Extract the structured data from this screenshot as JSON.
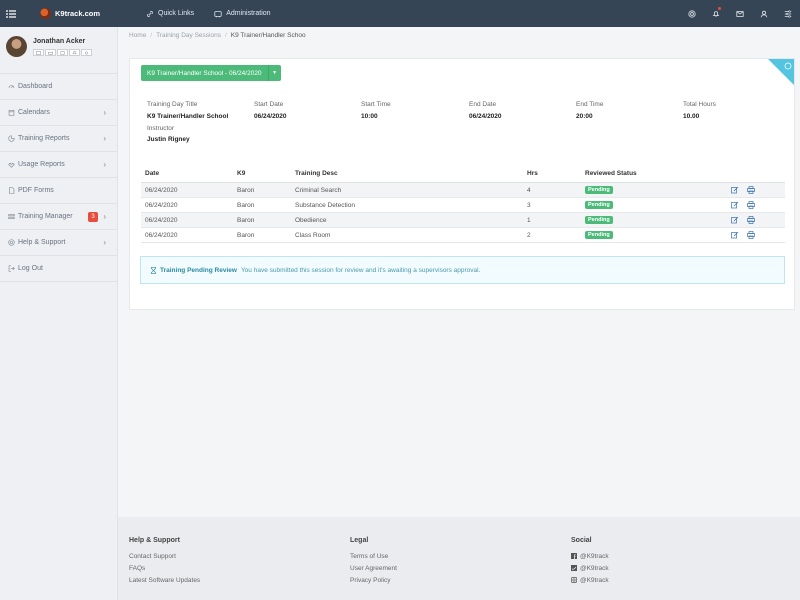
{
  "topbar": {
    "brand": "K9track.com",
    "quick_links": "Quick Links",
    "administration": "Administration"
  },
  "sidebar": {
    "user_name": "Jonathan Acker",
    "items": [
      {
        "label": "Dashboard",
        "icon": "gauge-icon",
        "chevron": false
      },
      {
        "label": "Calendars",
        "icon": "calendar-icon",
        "chevron": true
      },
      {
        "label": "Training Reports",
        "icon": "reports-icon",
        "chevron": true
      },
      {
        "label": "Usage Reports",
        "icon": "usage-icon",
        "chevron": true
      },
      {
        "label": "PDF Forms",
        "icon": "pdf-icon",
        "chevron": false
      },
      {
        "label": "Training Manager",
        "icon": "manager-icon",
        "chevron": true,
        "badge": "3"
      },
      {
        "label": "Help & Support",
        "icon": "help-icon",
        "chevron": true
      },
      {
        "label": "Log Out",
        "icon": "logout-icon",
        "chevron": false
      }
    ]
  },
  "breadcrumb": {
    "home": "Home",
    "sessions": "Training Day Sessions",
    "current": "K9 Trainer/Handler Schoo"
  },
  "session": {
    "button_label": "K9 Trainer/Handler School - 06/24/2020",
    "fields": [
      {
        "label": "Training Day Title",
        "value": "K9 Trainer/Handler School"
      },
      {
        "label": "Start Date",
        "value": "06/24/2020"
      },
      {
        "label": "Start Time",
        "value": "10:00"
      },
      {
        "label": "End Date",
        "value": "06/24/2020"
      },
      {
        "label": "End Time",
        "value": "20:00"
      },
      {
        "label": "Total Hours",
        "value": "10.00"
      }
    ],
    "instructor_label": "Instructor",
    "instructor_value": "Justin Rigney"
  },
  "table": {
    "headers": {
      "date": "Date",
      "k9": "K9",
      "desc": "Training Desc",
      "hrs": "Hrs",
      "status": "Reviewed Status"
    },
    "rows": [
      {
        "date": "06/24/2020",
        "k9": "Baron",
        "desc": "Criminal Search",
        "hrs": "4",
        "status": "Pending"
      },
      {
        "date": "06/24/2020",
        "k9": "Baron",
        "desc": "Substance Detection",
        "hrs": "3",
        "status": "Pending"
      },
      {
        "date": "06/24/2020",
        "k9": "Baron",
        "desc": "Obedience",
        "hrs": "1",
        "status": "Pending"
      },
      {
        "date": "06/24/2020",
        "k9": "Baron",
        "desc": "Class Room",
        "hrs": "2",
        "status": "Pending"
      }
    ]
  },
  "alert": {
    "title": "Training Pending Review",
    "message": "You have submitted this session for review and it's awaiting a supervisors approval."
  },
  "footer": {
    "help_heading": "Help & Support",
    "help_links": [
      "Contact Support",
      "FAQs",
      "Latest Software Updates"
    ],
    "legal_heading": "Legal",
    "legal_links": [
      "Terms of Use",
      "User Agreement",
      "Privacy Policy"
    ],
    "social_heading": "Social",
    "social_links": [
      "@K9track",
      "@K9track",
      "@K9track"
    ]
  },
  "colors": {
    "topbar": "#364556",
    "accent_green": "#4cbb7a",
    "alert_blue": "#53c5e0",
    "badge_red": "#e74c3c"
  }
}
